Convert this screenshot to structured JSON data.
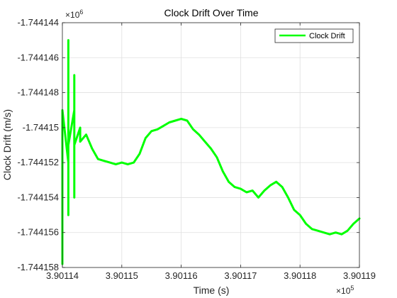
{
  "chart_data": {
    "type": "line",
    "title": "Clock Drift Over Time",
    "xlabel": "Time (s)",
    "ylabel": "Clock Drift (m/s)",
    "x_multiplier": "10",
    "x_multiplier_exp": "5",
    "y_multiplier": "10",
    "y_multiplier_exp": "6",
    "xlim": [
      3.90114,
      3.90119
    ],
    "ylim": [
      -1.744158,
      -1.744144
    ],
    "x_ticks": [
      3.90114,
      3.90115,
      3.90116,
      3.90117,
      3.90118,
      3.90119
    ],
    "x_tick_labels": [
      "3.90114",
      "3.90115",
      "3.90116",
      "3.90117",
      "3.90118",
      "3.90119"
    ],
    "y_ticks": [
      -1.744144,
      -1.744146,
      -1.744148,
      -1.74415,
      -1.744152,
      -1.744154,
      -1.744156,
      -1.744158
    ],
    "y_tick_labels": [
      "-1.744144",
      "-1.744146",
      "-1.744148",
      "-1.74415",
      "-1.744152",
      "-1.744154",
      "-1.744156",
      "-1.744158"
    ],
    "grid": true,
    "legend": {
      "position": "top-right",
      "entries": [
        "Clock Drift"
      ]
    },
    "series": [
      {
        "name": "Clock Drift",
        "color": "#00ff00",
        "x": [
          3.90114,
          3.90114,
          3.90114,
          3.90114,
          3.901141,
          3.901141,
          3.901141,
          3.901141,
          3.901141,
          3.901141,
          3.901141,
          3.901141,
          3.901141,
          3.901141,
          3.901141,
          3.901141,
          3.901141,
          3.901141,
          3.901141,
          3.901142,
          3.901142,
          3.901142,
          3.901142,
          3.901142,
          3.901142,
          3.901142,
          3.901142,
          3.901142,
          3.901142,
          3.901142,
          3.901142,
          3.901142,
          3.901143,
          3.901143,
          3.901143,
          3.901144,
          3.901145,
          3.901146,
          3.901147,
          3.901148,
          3.901149,
          3.90115,
          3.901151,
          3.901152,
          3.901153,
          3.901154,
          3.901155,
          3.901156,
          3.901157,
          3.901158,
          3.901159,
          3.90116,
          3.901161,
          3.901162,
          3.901163,
          3.901164,
          3.901165,
          3.901166,
          3.901167,
          3.901168,
          3.901169,
          3.90117,
          3.901171,
          3.901172,
          3.901173,
          3.901174,
          3.901175,
          3.901176,
          3.901177,
          3.901178,
          3.901179,
          3.90118,
          3.901181,
          3.901182,
          3.901183,
          3.901184,
          3.901185,
          3.901186,
          3.901187,
          3.901188,
          3.901189,
          3.90119
        ],
        "y": [
          -1.7441578,
          -1.744151,
          -1.744153,
          -1.744149,
          -1.744152,
          -1.74415,
          -1.744153,
          -1.744147,
          -1.744154,
          -1.744145,
          -1.744151,
          -1.744149,
          -1.744155,
          -1.744148,
          -1.744152,
          -1.74415,
          -1.744153,
          -1.744148,
          -1.744151,
          -1.744149,
          -1.744153,
          -1.74415,
          -1.744152,
          -1.744147,
          -1.744154,
          -1.744149,
          -1.744151,
          -1.744148,
          -1.74415,
          -1.744152,
          -1.744149,
          -1.744151,
          -1.74415,
          -1.7441505,
          -1.7441508,
          -1.7441504,
          -1.7441512,
          -1.7441518,
          -1.7441519,
          -1.744152,
          -1.7441521,
          -1.744152,
          -1.7441521,
          -1.744152,
          -1.7441515,
          -1.7441506,
          -1.7441502,
          -1.7441501,
          -1.7441499,
          -1.7441497,
          -1.7441496,
          -1.7441495,
          -1.7441496,
          -1.7441501,
          -1.7441504,
          -1.7441508,
          -1.7441512,
          -1.7441517,
          -1.7441525,
          -1.7441531,
          -1.7441534,
          -1.7441535,
          -1.7441537,
          -1.7441536,
          -1.744154,
          -1.7441536,
          -1.7441533,
          -1.7441531,
          -1.7441534,
          -1.744154,
          -1.7441547,
          -1.744155,
          -1.7441555,
          -1.7441558,
          -1.7441559,
          -1.744156,
          -1.7441561,
          -1.744156,
          -1.7441561,
          -1.7441559,
          -1.7441555,
          -1.7441552
        ]
      }
    ]
  }
}
